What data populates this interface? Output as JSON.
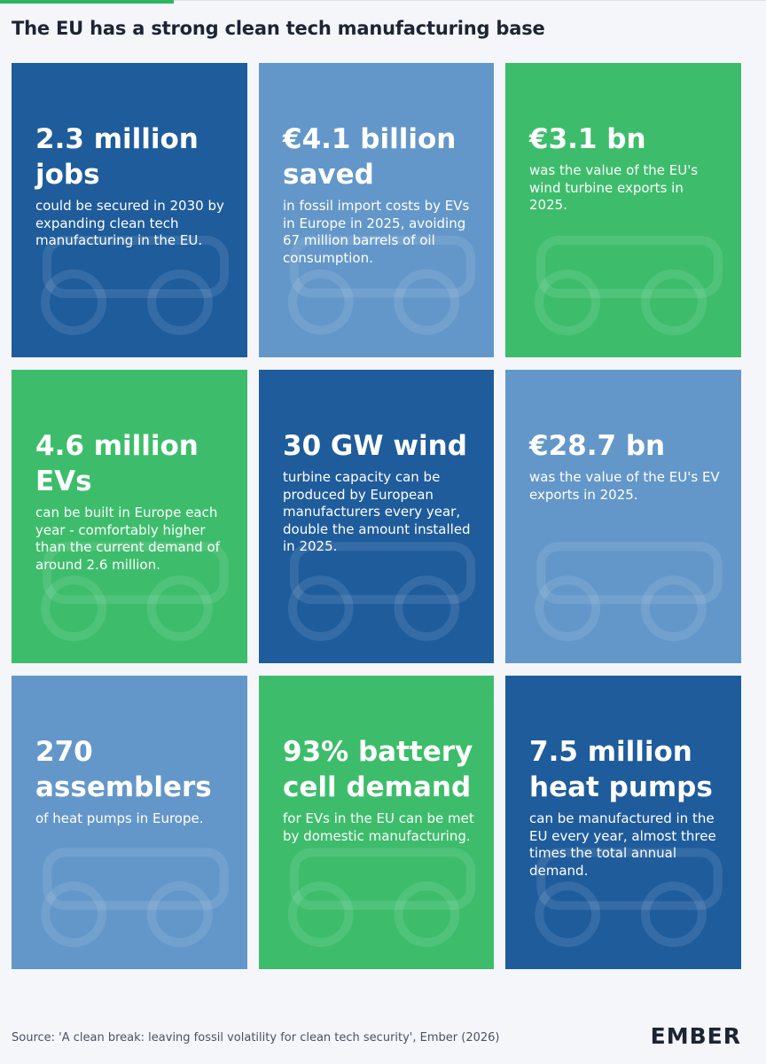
{
  "header": {
    "title": "The EU has a strong clean tech manufacturing base"
  },
  "cards": [
    {
      "headline": "2.3 million jobs",
      "body": "could be secured in 2030 by expanding clean tech manufacturing in the EU."
    },
    {
      "headline": "€4.1 billion saved",
      "body": "in fossil import costs by EVs in Europe in 2025, avoiding 67 million barrels of oil consumption."
    },
    {
      "headline": "€3.1 bn",
      "body": "was the value of the EU's wind turbine exports in 2025."
    },
    {
      "headline": "4.6 million EVs",
      "body": "can be built in Europe each year - comfortably higher than the current demand of around 2.6 million."
    },
    {
      "headline": "30 GW wind",
      "body": "turbine capacity can be produced by European manufacturers every year, double the amount installed in 2025."
    },
    {
      "headline": "€28.7 bn",
      "body": "was the value of the EU's EV exports in 2025."
    },
    {
      "headline": "270 assemblers",
      "body": "of heat pumps in Europe."
    },
    {
      "headline": "93% battery cell demand",
      "body": "for EVs in the EU can be met by domestic manufacturing."
    },
    {
      "headline": "7.5 million heat pumps",
      "body": "can be manufactured in the EU every year, almost three times the total annual demand."
    }
  ],
  "footer": {
    "source": "Source: 'A clean break: leaving fossil volatility for clean tech security', Ember (2026)",
    "logo": "EMBER"
  }
}
